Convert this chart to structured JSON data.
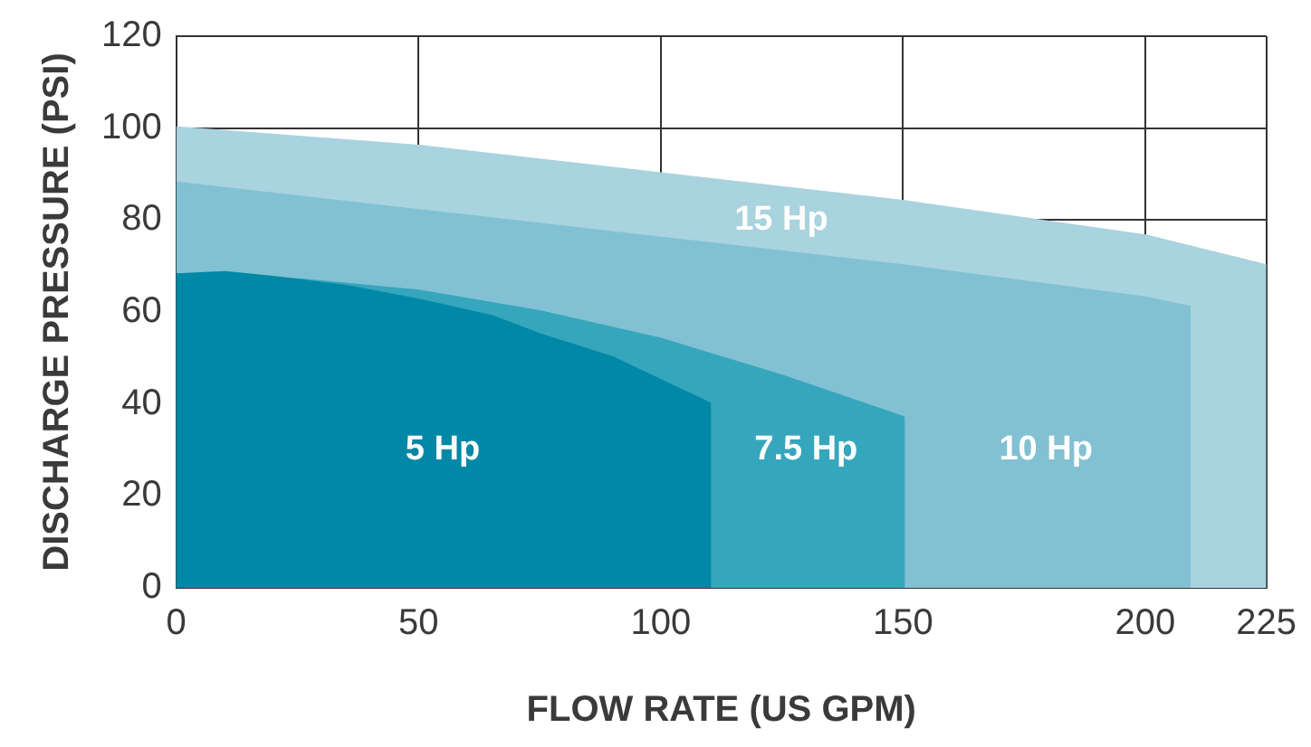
{
  "chart_data": {
    "type": "area",
    "xlabel": "FLOW RATE (US GPM)",
    "ylabel": "DISCHARGE PRESSURE (PSI)",
    "xlim": [
      0,
      225
    ],
    "xticks": [
      0,
      50,
      100,
      150,
      200,
      225
    ],
    "ylim": [
      0,
      120
    ],
    "yticks": [
      0,
      20,
      40,
      60,
      80,
      100,
      120
    ],
    "grid": true,
    "series": [
      {
        "name": "15 Hp",
        "color": "#a8d3df",
        "x": [
          0,
          50,
          100,
          150,
          200,
          225
        ],
        "values": [
          100,
          96,
          90,
          84,
          76.5,
          70
        ]
      },
      {
        "name": "10 Hp",
        "color": "#82c1d3",
        "x": [
          0,
          50,
          100,
          150,
          200,
          209,
          209
        ],
        "values": [
          88,
          82,
          76,
          70,
          63,
          61,
          0
        ]
      },
      {
        "name": "7.5 Hp",
        "color": "#36a6bd",
        "x": [
          0,
          25,
          50,
          75,
          100,
          125,
          150,
          150
        ],
        "values": [
          68,
          67,
          64.5,
          60,
          54,
          46,
          37,
          0
        ]
      },
      {
        "name": "5 Hp",
        "color": "#0088a6",
        "x": [
          0,
          10,
          20,
          35,
          50,
          65,
          75,
          90,
          100,
          110,
          110
        ],
        "values": [
          68,
          68.5,
          67.5,
          65.5,
          62.5,
          59,
          55,
          50,
          45,
          40,
          0
        ]
      }
    ]
  }
}
